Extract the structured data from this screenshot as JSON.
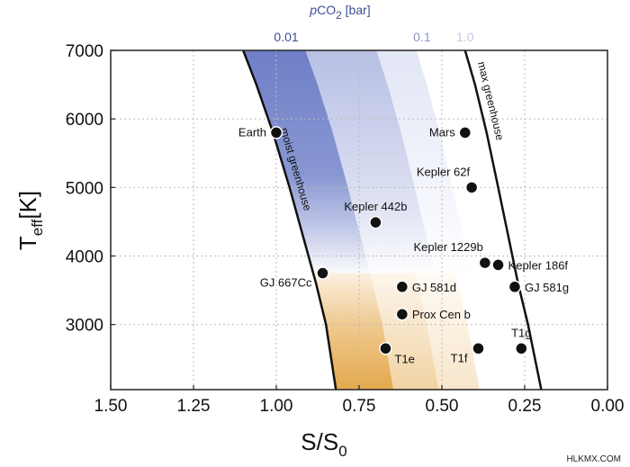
{
  "chart_data": {
    "type": "scatter",
    "title": "",
    "xlabel_main": "S/S",
    "xlabel_sub": "0",
    "ylabel_main": "T",
    "ylabel_sub": "eff",
    "ylabel_unit": "[K]",
    "xlim": [
      1.5,
      0.0
    ],
    "ylim": [
      2050,
      7000
    ],
    "x_reversed": true,
    "grid": true,
    "x_ticks": [
      1.5,
      1.25,
      1.0,
      0.75,
      0.5,
      0.25,
      0.0
    ],
    "x_tick_labels": [
      "1.50",
      "1.25",
      "1.00",
      "0.75",
      "0.50",
      "0.25",
      "0.00"
    ],
    "y_ticks": [
      3000,
      4000,
      5000,
      6000,
      7000
    ],
    "y_tick_labels": [
      "3000",
      "4000",
      "5000",
      "6000",
      "7000"
    ],
    "top_axis": {
      "title_italic": "p",
      "title_main": "CO",
      "title_sub": "2",
      "title_unit": " [bar]",
      "ticks": [
        {
          "label": "0.01",
          "color": "#3d4f96",
          "x": 0.97
        },
        {
          "label": "0.1",
          "color": "#8a97c6",
          "x": 0.56
        },
        {
          "label": "1.0",
          "color": "#c4cbe2",
          "x": 0.43
        }
      ]
    },
    "curves": [
      {
        "name": "moist greenhouse",
        "points": [
          [
            1.1,
            7000
          ],
          [
            1.06,
            6500
          ],
          [
            1.01,
            5800
          ],
          [
            0.96,
            5000
          ],
          [
            0.92,
            4300
          ],
          [
            0.88,
            3600
          ],
          [
            0.85,
            3000
          ],
          [
            0.82,
            2050
          ]
        ]
      },
      {
        "name": "max greenhouse",
        "points": [
          [
            0.43,
            7000
          ],
          [
            0.4,
            6500
          ],
          [
            0.365,
            5800
          ],
          [
            0.33,
            5000
          ],
          [
            0.3,
            4300
          ],
          [
            0.27,
            3600
          ],
          [
            0.24,
            3000
          ],
          [
            0.2,
            2050
          ]
        ]
      }
    ],
    "points": [
      {
        "name": "Earth",
        "x": 1.0,
        "y": 5800,
        "label_pos": "left"
      },
      {
        "name": "Mars",
        "x": 0.43,
        "y": 5800,
        "label_pos": "left"
      },
      {
        "name": "Kepler 62f",
        "x": 0.41,
        "y": 5000,
        "label_pos": "top-left"
      },
      {
        "name": "Kepler 442b",
        "x": 0.7,
        "y": 4490,
        "label_pos": "top"
      },
      {
        "name": "Kepler 1229b",
        "x": 0.37,
        "y": 3900,
        "label_pos": "top-left"
      },
      {
        "name": "Kepler 186f",
        "x": 0.33,
        "y": 3870,
        "label_pos": "right"
      },
      {
        "name": "GJ 667Cc",
        "x": 0.86,
        "y": 3750,
        "label_pos": "bottom-left"
      },
      {
        "name": "GJ 581d",
        "x": 0.62,
        "y": 3550,
        "label_pos": "right"
      },
      {
        "name": "GJ 581g",
        "x": 0.28,
        "y": 3550,
        "label_pos": "right"
      },
      {
        "name": "Prox Cen b",
        "x": 0.62,
        "y": 3150,
        "label_pos": "right"
      },
      {
        "name": "T1e",
        "x": 0.67,
        "y": 2650,
        "label_pos": "bottom-right"
      },
      {
        "name": "T1f",
        "x": 0.39,
        "y": 2650,
        "label_pos": "bottom-left"
      },
      {
        "name": "T1g",
        "x": 0.26,
        "y": 2650,
        "label_pos": "top"
      }
    ]
  },
  "watermark": "HLKMX.COM"
}
